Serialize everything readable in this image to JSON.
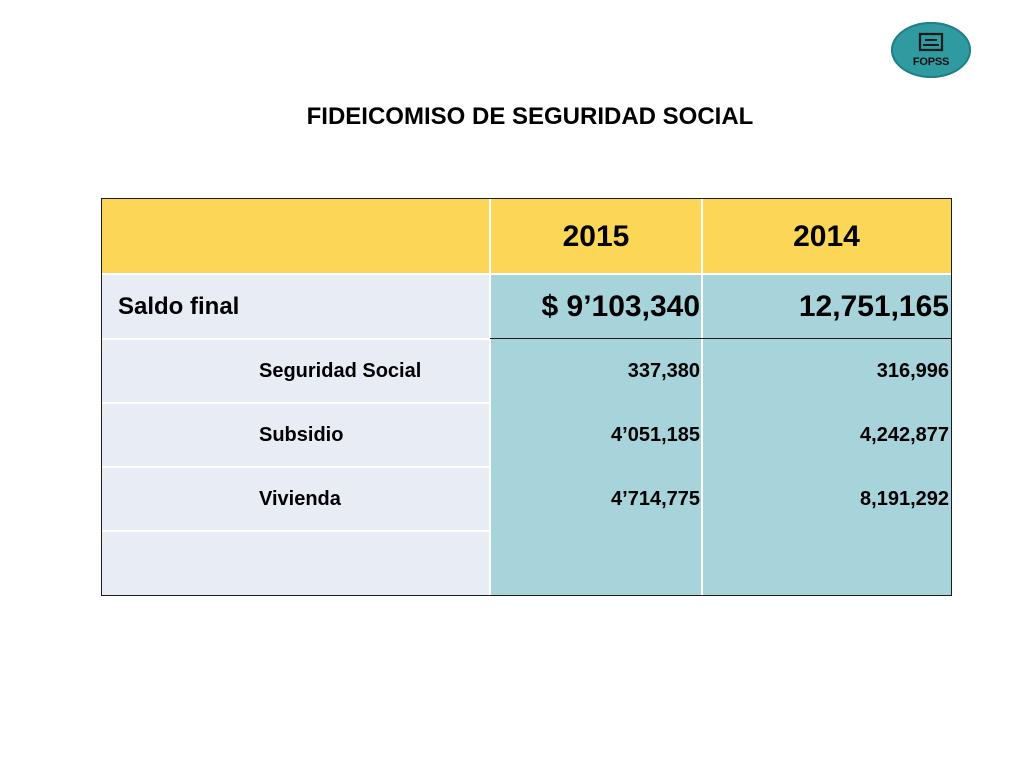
{
  "logo": {
    "text": "FOPSS",
    "icon": "book-icon"
  },
  "title": "FIDEICOMISO DE SEGURIDAD SOCIAL",
  "table": {
    "years": [
      "2015",
      "2014"
    ],
    "rows": [
      {
        "label": "Saldo final",
        "v2015": "$ 9’103,340",
        "v2014": "12,751,165"
      },
      {
        "label": "Seguridad Social",
        "v2015": "337,380",
        "v2014": "316,996"
      },
      {
        "label": "Subsidio",
        "v2015": "4’051,185",
        "v2014": "4,242,877"
      },
      {
        "label": "Vivienda",
        "v2015": "4’714,775",
        "v2014": "8,191,292"
      }
    ]
  },
  "colors": {
    "header": "#fcd657",
    "label_bg": "#e8ecf4",
    "value_bg": "#a7d3da",
    "logo": "#2f9aa0"
  }
}
